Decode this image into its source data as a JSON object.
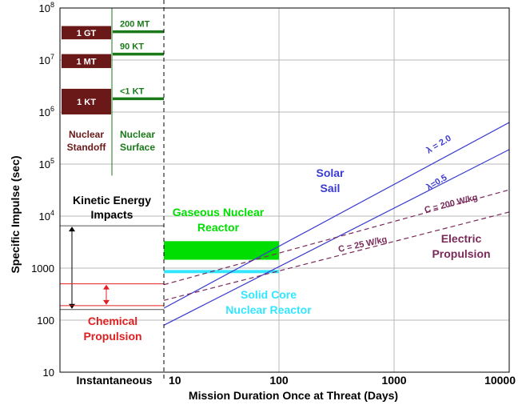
{
  "chart_data": {
    "type": "line",
    "title": "",
    "xlabel": "Mission Duration Once at Threat (Days)",
    "ylabel": "Specific Impulse (sec)",
    "x_scale": "log",
    "y_scale": "log",
    "xlim": [
      10,
      10000
    ],
    "ylim": [
      10,
      100000000
    ],
    "grid": true,
    "x_ticks": [
      {
        "value": 10,
        "label": "10"
      },
      {
        "value": 100,
        "label": "100"
      },
      {
        "value": 1000,
        "label": "1000"
      },
      {
        "value": 10000,
        "label": "10000"
      }
    ],
    "instantaneous_label": "Instantaneous",
    "y_ticks": [
      {
        "value": 10,
        "label": "10"
      },
      {
        "value": 100,
        "label": "100"
      },
      {
        "value": 1000,
        "label": "1000"
      },
      {
        "value": 10000,
        "base": "10",
        "exp": "4"
      },
      {
        "value": 100000,
        "base": "10",
        "exp": "5"
      },
      {
        "value": 1000000,
        "base": "10",
        "exp": "6"
      },
      {
        "value": 10000000,
        "base": "10",
        "exp": "7"
      },
      {
        "value": 100000000,
        "base": "10",
        "exp": "8"
      }
    ],
    "series": [
      {
        "name": "λ=2.0",
        "style": "solid",
        "color": "#3a3ad0",
        "x": [
          10,
          10000
        ],
        "y": [
          170,
          630000
        ]
      },
      {
        "name": "λ=0.5",
        "style": "solid",
        "color": "#3a3ad0",
        "x": [
          10,
          10000
        ],
        "y": [
          80,
          190000
        ]
      },
      {
        "name": "C = 200 W/kg",
        "style": "dashed",
        "color": "#7a2a5a",
        "x": [
          10,
          10000
        ],
        "y": [
          480,
          32000
        ]
      },
      {
        "name": "C = 25 W/kg",
        "style": "dashed",
        "color": "#7a2a5a",
        "x": [
          10,
          10000
        ],
        "y": [
          240,
          12000
        ]
      }
    ],
    "bands": [
      {
        "name": "Gaseous Nuclear Reactor",
        "color": "#00dd00",
        "x": [
          10,
          100
        ],
        "y": [
          1450,
          3300
        ]
      },
      {
        "name": "Solid Core Nuclear Reactor",
        "color": "#33e6ff",
        "x": [
          10,
          100
        ],
        "y": [
          800,
          920
        ]
      }
    ],
    "nuclear_blocks": [
      {
        "label": "1 GT",
        "y": [
          25000000,
          45000000
        ]
      },
      {
        "label": "1 MT",
        "y": [
          7000000,
          13000000
        ]
      },
      {
        "label": "1 KT",
        "y": [
          900000,
          2800000
        ]
      }
    ],
    "nuclear_surface_levels": [
      {
        "label": "200 MT",
        "y": 35000000
      },
      {
        "label": "90 KT",
        "y": 13000000
      },
      {
        "label": "<1 KT",
        "y": 1800000
      }
    ],
    "instantaneous_ranges": [
      {
        "name": "Kinetic Energy Impacts",
        "y": [
          160,
          6500
        ]
      },
      {
        "name": "Chemical Propulsion",
        "y": [
          190,
          500
        ]
      }
    ],
    "annotations": {
      "solar_sail": [
        "Solar",
        "Sail"
      ],
      "lambda_20": "λ = 2.0",
      "lambda_05": "λ=0.5",
      "c200": "C = 200 W/kg",
      "c25": "C = 25 W/kg",
      "electric": [
        "Electric",
        "Propulsion"
      ],
      "gaseous": [
        "Gaseous Nuclear",
        "Reactor"
      ],
      "solid": [
        "Solid Core",
        "Nuclear Reactor"
      ],
      "kinetic": [
        "Kinetic Energy",
        "Impacts"
      ],
      "chemical": [
        "Chemical",
        "Propulsion"
      ],
      "nuclear_standoff": [
        "Nuclear",
        "Standoff"
      ],
      "nuclear_surface": [
        "Nuclear",
        "Surface"
      ]
    },
    "colors": {
      "solar": "#3a3ad0",
      "electric": "#7a2a5a",
      "gaseous": "#00dd00",
      "solid": "#33e6ff",
      "chemical": "#e02020",
      "standoff": "#6a1818",
      "surface": "#1a7a1a",
      "kinetic": "#000000"
    }
  }
}
